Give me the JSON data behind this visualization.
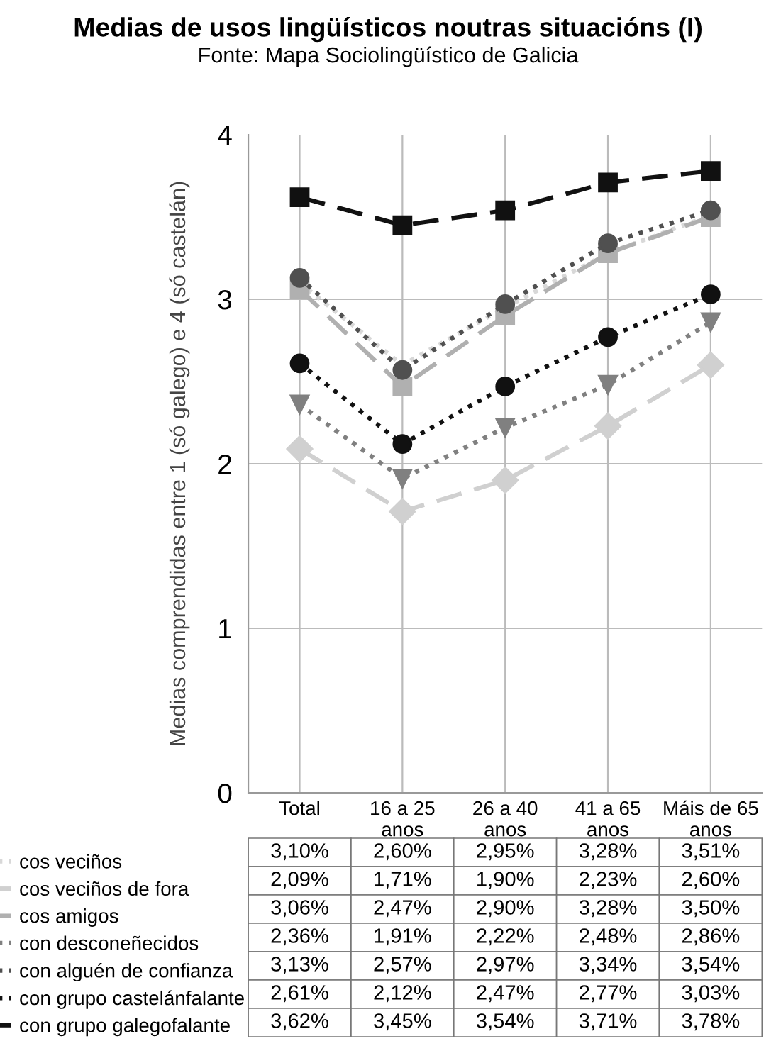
{
  "chart_data": {
    "type": "line",
    "title": "Medias de usos lingüísticos noutras situacións (I)",
    "subtitle": "Fonte: Mapa Sociolingüístico de Galicia",
    "ylabel": "Medias comprendidas entre 1 (só galego) e 4 (só castelán)",
    "categories": [
      "Total",
      "16 a 25\nanos",
      "26 a 40\nanos",
      "41 a 65\nanos",
      "Máis de 65\nanos"
    ],
    "ylim": [
      0,
      4
    ],
    "yticks": [
      0,
      1,
      2,
      3,
      4
    ],
    "grid": true,
    "legend": "bottom",
    "data_labels": true,
    "series": [
      {
        "name": "cos veciños",
        "color": "#d8d8d8",
        "marker": "none",
        "line_style": "dotted",
        "values": [
          3.1,
          2.6,
          2.95,
          3.28,
          3.51
        ],
        "value_labels": [
          "3,10%",
          "2,60%",
          "2,95%",
          "3,28%",
          "3,51%"
        ]
      },
      {
        "name": "cos veciños de fora",
        "color": "#d0d0d0",
        "marker": "diamond",
        "line_style": "dashed",
        "values": [
          2.09,
          1.71,
          1.9,
          2.23,
          2.6
        ],
        "value_labels": [
          "2,09%",
          "1,71%",
          "1,90%",
          "2,23%",
          "2,60%"
        ]
      },
      {
        "name": "cos amigos",
        "color": "#b0b0b0",
        "marker": "square",
        "line_style": "dashed",
        "values": [
          3.06,
          2.47,
          2.9,
          3.28,
          3.5
        ],
        "value_labels": [
          "3,06%",
          "2,47%",
          "2,90%",
          "3,28%",
          "3,50%"
        ]
      },
      {
        "name": "con desconeñecidos",
        "color": "#808080",
        "marker": "triangle",
        "line_style": "dotted",
        "values": [
          2.36,
          1.91,
          2.22,
          2.48,
          2.86
        ],
        "value_labels": [
          "2,36%",
          "1,91%",
          "2,22%",
          "2,48%",
          "2,86%"
        ]
      },
      {
        "name": "con alguén de confianza",
        "color": "#505050",
        "marker": "circle",
        "line_style": "dotted",
        "values": [
          3.13,
          2.57,
          2.97,
          3.34,
          3.54
        ],
        "value_labels": [
          "3,13%",
          "2,57%",
          "2,97%",
          "3,34%",
          "3,54%"
        ]
      },
      {
        "name": "con grupo castelánfalante",
        "color": "#111111",
        "marker": "circle",
        "line_style": "dotted",
        "values": [
          2.61,
          2.12,
          2.47,
          2.77,
          3.03
        ],
        "value_labels": [
          "2,61%",
          "2,12%",
          "2,47%",
          "2,77%",
          "3,03%"
        ]
      },
      {
        "name": "con grupo galegofalante",
        "color": "#111111",
        "marker": "square",
        "line_style": "dashed",
        "values": [
          3.62,
          3.45,
          3.54,
          3.71,
          3.78
        ],
        "value_labels": [
          "3,62%",
          "3,45%",
          "3,54%",
          "3,71%",
          "3,78%"
        ]
      }
    ]
  }
}
